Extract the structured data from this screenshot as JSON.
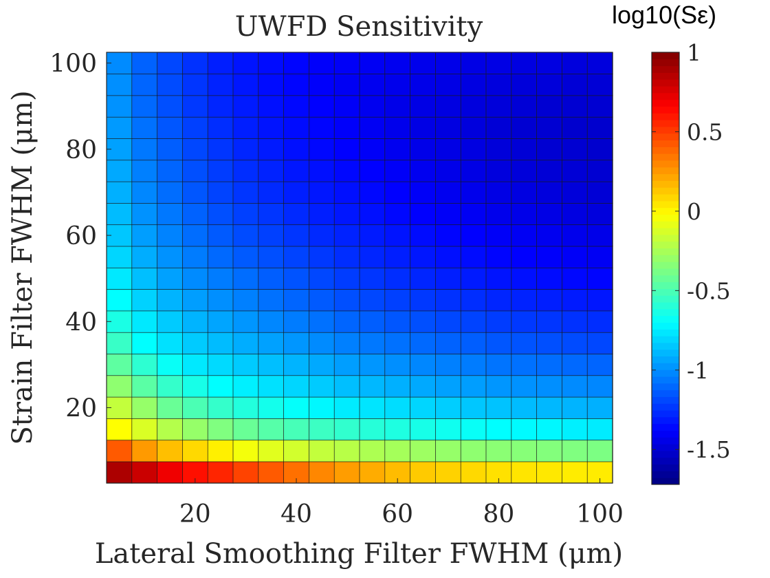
{
  "chart_data": {
    "type": "heatmap",
    "title": "UWFD Sensitivity",
    "xlabel": "Lateral Smoothing Filter FWHM (μm)",
    "ylabel": "Strain Filter FWHM (μm)",
    "colorbar_label": "log10(Sε)",
    "colormap": "jet",
    "x_centers": [
      5,
      10,
      15,
      20,
      25,
      30,
      35,
      40,
      45,
      50,
      55,
      60,
      65,
      70,
      75,
      80,
      85,
      90,
      95,
      100
    ],
    "y_centers": [
      5,
      10,
      15,
      20,
      25,
      30,
      35,
      40,
      45,
      50,
      55,
      60,
      65,
      70,
      75,
      80,
      85,
      90,
      95,
      100
    ],
    "xlim": [
      2.5,
      102.5
    ],
    "ylim": [
      2.5,
      102.5
    ],
    "xticks": [
      20,
      40,
      60,
      80,
      100
    ],
    "yticks": [
      20,
      40,
      60,
      80,
      100
    ],
    "clim": [
      -1.72,
      1.0
    ],
    "cticks": [
      -1.5,
      -1,
      -0.5,
      0,
      0.5,
      1
    ],
    "grid": false,
    "values_rows_bottom_to_top": [
      [
        0.88,
        0.8,
        0.7,
        0.62,
        0.56,
        0.48,
        0.42,
        0.36,
        0.3,
        0.24,
        0.2,
        0.16,
        0.12,
        0.1,
        0.08,
        0.06,
        0.05,
        0.04,
        0.03,
        0.03
      ],
      [
        0.42,
        0.25,
        0.15,
        0.08,
        0.02,
        -0.05,
        -0.1,
        -0.14,
        -0.18,
        -0.21,
        -0.24,
        -0.26,
        -0.28,
        -0.3,
        -0.32,
        -0.33,
        -0.34,
        -0.35,
        -0.36,
        -0.37
      ],
      [
        -0.02,
        -0.12,
        -0.22,
        -0.3,
        -0.36,
        -0.42,
        -0.47,
        -0.51,
        -0.54,
        -0.57,
        -0.6,
        -0.62,
        -0.64,
        -0.66,
        -0.68,
        -0.7,
        -0.71,
        -0.72,
        -0.74,
        -0.75
      ],
      [
        -0.18,
        -0.3,
        -0.42,
        -0.5,
        -0.56,
        -0.61,
        -0.65,
        -0.69,
        -0.72,
        -0.75,
        -0.77,
        -0.79,
        -0.81,
        -0.83,
        -0.85,
        -0.86,
        -0.88,
        -0.89,
        -0.9,
        -0.91
      ],
      [
        -0.32,
        -0.46,
        -0.56,
        -0.64,
        -0.7,
        -0.74,
        -0.78,
        -0.81,
        -0.84,
        -0.87,
        -0.89,
        -0.91,
        -0.93,
        -0.95,
        -0.96,
        -0.98,
        -0.99,
        -1.0,
        -1.01,
        -1.02
      ],
      [
        -0.45,
        -0.58,
        -0.68,
        -0.76,
        -0.8,
        -0.84,
        -0.87,
        -0.9,
        -0.93,
        -0.96,
        -0.98,
        -1.0,
        -1.02,
        -1.04,
        -1.05,
        -1.07,
        -1.08,
        -1.09,
        -1.1,
        -1.11
      ],
      [
        -0.55,
        -0.7,
        -0.78,
        -0.84,
        -0.88,
        -0.92,
        -0.95,
        -0.98,
        -1.01,
        -1.04,
        -1.06,
        -1.08,
        -1.1,
        -1.12,
        -1.13,
        -1.15,
        -1.16,
        -1.17,
        -1.18,
        -1.19
      ],
      [
        -0.63,
        -0.76,
        -0.84,
        -0.9,
        -0.94,
        -0.98,
        -1.02,
        -1.05,
        -1.08,
        -1.11,
        -1.13,
        -1.15,
        -1.17,
        -1.19,
        -1.2,
        -1.22,
        -1.23,
        -1.24,
        -1.25,
        -1.26
      ],
      [
        -0.7,
        -0.82,
        -0.9,
        -0.96,
        -1.0,
        -1.04,
        -1.08,
        -1.11,
        -1.14,
        -1.17,
        -1.19,
        -1.21,
        -1.23,
        -1.25,
        -1.26,
        -1.28,
        -1.29,
        -1.3,
        -1.31,
        -1.32
      ],
      [
        -0.76,
        -0.87,
        -0.95,
        -1.01,
        -1.05,
        -1.09,
        -1.13,
        -1.16,
        -1.19,
        -1.22,
        -1.24,
        -1.26,
        -1.28,
        -1.3,
        -1.31,
        -1.33,
        -1.34,
        -1.35,
        -1.36,
        -1.37
      ],
      [
        -0.81,
        -0.92,
        -0.99,
        -1.05,
        -1.1,
        -1.14,
        -1.17,
        -1.2,
        -1.23,
        -1.26,
        -1.28,
        -1.3,
        -1.32,
        -1.34,
        -1.35,
        -1.37,
        -1.38,
        -1.39,
        -1.4,
        -1.41
      ],
      [
        -0.85,
        -0.96,
        -1.03,
        -1.09,
        -1.14,
        -1.18,
        -1.21,
        -1.24,
        -1.27,
        -1.29,
        -1.31,
        -1.33,
        -1.35,
        -1.37,
        -1.38,
        -1.4,
        -1.41,
        -1.42,
        -1.43,
        -1.44
      ],
      [
        -0.88,
        -0.99,
        -1.06,
        -1.12,
        -1.17,
        -1.21,
        -1.24,
        -1.27,
        -1.3,
        -1.32,
        -1.34,
        -1.36,
        -1.38,
        -1.4,
        -1.41,
        -1.43,
        -1.44,
        -1.45,
        -1.46,
        -1.47
      ],
      [
        -0.91,
        -1.02,
        -1.09,
        -1.15,
        -1.2,
        -1.24,
        -1.27,
        -1.3,
        -1.32,
        -1.34,
        -1.36,
        -1.38,
        -1.4,
        -1.42,
        -1.43,
        -1.45,
        -1.46,
        -1.47,
        -1.48,
        -1.49
      ],
      [
        -0.93,
        -1.04,
        -1.11,
        -1.17,
        -1.22,
        -1.26,
        -1.29,
        -1.32,
        -1.34,
        -1.36,
        -1.38,
        -1.4,
        -1.42,
        -1.44,
        -1.45,
        -1.47,
        -1.48,
        -1.49,
        -1.49,
        -1.5
      ],
      [
        -0.95,
        -1.06,
        -1.13,
        -1.19,
        -1.24,
        -1.28,
        -1.31,
        -1.34,
        -1.36,
        -1.38,
        -1.4,
        -1.42,
        -1.44,
        -1.45,
        -1.46,
        -1.48,
        -1.49,
        -1.5,
        -1.5,
        -1.51
      ],
      [
        -0.97,
        -1.08,
        -1.15,
        -1.21,
        -1.26,
        -1.3,
        -1.33,
        -1.35,
        -1.37,
        -1.39,
        -1.41,
        -1.43,
        -1.45,
        -1.46,
        -1.47,
        -1.49,
        -1.5,
        -1.5,
        -1.51,
        -1.51
      ],
      [
        -0.99,
        -1.1,
        -1.17,
        -1.23,
        -1.28,
        -1.31,
        -1.34,
        -1.36,
        -1.38,
        -1.4,
        -1.42,
        -1.44,
        -1.45,
        -1.46,
        -1.47,
        -1.48,
        -1.49,
        -1.5,
        -1.5,
        -1.5
      ],
      [
        -1.0,
        -1.11,
        -1.18,
        -1.24,
        -1.29,
        -1.32,
        -1.35,
        -1.37,
        -1.39,
        -1.41,
        -1.42,
        -1.43,
        -1.44,
        -1.45,
        -1.46,
        -1.47,
        -1.48,
        -1.48,
        -1.49,
        -1.49
      ],
      [
        -1.01,
        -1.12,
        -1.19,
        -1.25,
        -1.3,
        -1.33,
        -1.35,
        -1.37,
        -1.39,
        -1.4,
        -1.41,
        -1.42,
        -1.43,
        -1.44,
        -1.45,
        -1.45,
        -1.46,
        -1.46,
        -1.47,
        -1.47
      ]
    ]
  }
}
